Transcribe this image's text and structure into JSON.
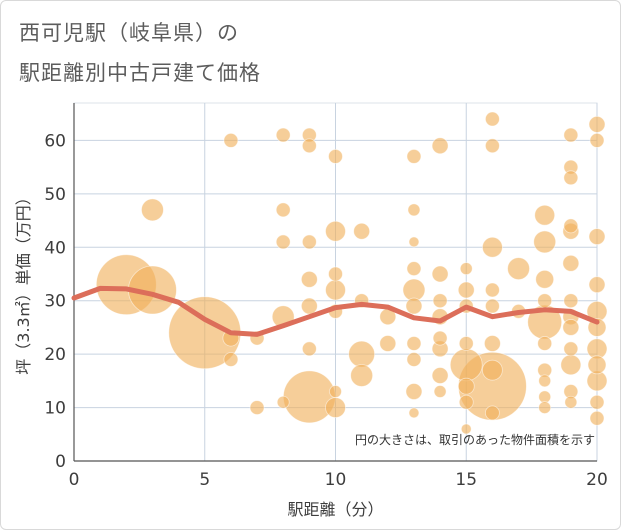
{
  "title_line1": "西可児駅（岐阜県）の",
  "title_line2": "駅距離別中古戸建て価格",
  "chart_data": {
    "type": "scatter",
    "xlabel": "駅距離（分）",
    "ylabel": "坪（3.3㎡）単価（万円）",
    "xlim": [
      0,
      20
    ],
    "ylim": [
      0,
      67
    ],
    "xticks": [
      0,
      5,
      10,
      15,
      20
    ],
    "yticks": [
      0,
      10,
      20,
      30,
      40,
      50,
      60
    ],
    "grid": true,
    "note": "円の大きさは、取引のあった物件面積を示す",
    "colors": {
      "bubble": "#f0b05a",
      "trend": "#dc6e5a"
    },
    "points": [
      {
        "x": 2,
        "y": 33,
        "s": 30
      },
      {
        "x": 3,
        "y": 32,
        "s": 24
      },
      {
        "x": 3,
        "y": 47,
        "s": 11
      },
      {
        "x": 5,
        "y": 24,
        "s": 36
      },
      {
        "x": 6,
        "y": 60,
        "s": 7
      },
      {
        "x": 6,
        "y": 23,
        "s": 8
      },
      {
        "x": 6,
        "y": 19,
        "s": 7
      },
      {
        "x": 7,
        "y": 23,
        "s": 7
      },
      {
        "x": 7,
        "y": 10,
        "s": 7
      },
      {
        "x": 8,
        "y": 61,
        "s": 7
      },
      {
        "x": 8,
        "y": 47,
        "s": 7
      },
      {
        "x": 8,
        "y": 41,
        "s": 7
      },
      {
        "x": 8,
        "y": 27,
        "s": 11
      },
      {
        "x": 8,
        "y": 11,
        "s": 6
      },
      {
        "x": 9,
        "y": 61,
        "s": 7
      },
      {
        "x": 9,
        "y": 59,
        "s": 7
      },
      {
        "x": 9,
        "y": 41,
        "s": 7
      },
      {
        "x": 9,
        "y": 34,
        "s": 8
      },
      {
        "x": 9,
        "y": 29,
        "s": 8
      },
      {
        "x": 9,
        "y": 21,
        "s": 7
      },
      {
        "x": 9,
        "y": 12,
        "s": 26
      },
      {
        "x": 10,
        "y": 57,
        "s": 7
      },
      {
        "x": 10,
        "y": 43,
        "s": 10
      },
      {
        "x": 10,
        "y": 35,
        "s": 7
      },
      {
        "x": 10,
        "y": 32,
        "s": 10
      },
      {
        "x": 10,
        "y": 28,
        "s": 7
      },
      {
        "x": 10,
        "y": 13,
        "s": 6
      },
      {
        "x": 10,
        "y": 10,
        "s": 10
      },
      {
        "x": 11,
        "y": 43,
        "s": 8
      },
      {
        "x": 11,
        "y": 30,
        "s": 7
      },
      {
        "x": 11,
        "y": 20,
        "s": 13
      },
      {
        "x": 11,
        "y": 16,
        "s": 11
      },
      {
        "x": 12,
        "y": 27,
        "s": 8
      },
      {
        "x": 12,
        "y": 22,
        "s": 8
      },
      {
        "x": 13,
        "y": 57,
        "s": 7
      },
      {
        "x": 13,
        "y": 47,
        "s": 6
      },
      {
        "x": 13,
        "y": 41,
        "s": 5
      },
      {
        "x": 13,
        "y": 36,
        "s": 7
      },
      {
        "x": 13,
        "y": 32,
        "s": 11
      },
      {
        "x": 13,
        "y": 29,
        "s": 8
      },
      {
        "x": 13,
        "y": 22,
        "s": 7
      },
      {
        "x": 13,
        "y": 19,
        "s": 7
      },
      {
        "x": 13,
        "y": 13,
        "s": 8
      },
      {
        "x": 13,
        "y": 9,
        "s": 5
      },
      {
        "x": 14,
        "y": 59,
        "s": 8
      },
      {
        "x": 14,
        "y": 35,
        "s": 8
      },
      {
        "x": 14,
        "y": 30,
        "s": 7
      },
      {
        "x": 14,
        "y": 27,
        "s": 8
      },
      {
        "x": 14,
        "y": 23,
        "s": 7
      },
      {
        "x": 14,
        "y": 21,
        "s": 8
      },
      {
        "x": 14,
        "y": 16,
        "s": 8
      },
      {
        "x": 14,
        "y": 13,
        "s": 6
      },
      {
        "x": 15,
        "y": 36,
        "s": 6
      },
      {
        "x": 15,
        "y": 32,
        "s": 8
      },
      {
        "x": 15,
        "y": 29,
        "s": 7
      },
      {
        "x": 15,
        "y": 22,
        "s": 7
      },
      {
        "x": 15,
        "y": 18,
        "s": 16
      },
      {
        "x": 15,
        "y": 14,
        "s": 8
      },
      {
        "x": 15,
        "y": 11,
        "s": 7
      },
      {
        "x": 15,
        "y": 6,
        "s": 5
      },
      {
        "x": 16,
        "y": 64,
        "s": 7
      },
      {
        "x": 16,
        "y": 59,
        "s": 7
      },
      {
        "x": 16,
        "y": 40,
        "s": 10
      },
      {
        "x": 16,
        "y": 32,
        "s": 7
      },
      {
        "x": 16,
        "y": 29,
        "s": 7
      },
      {
        "x": 16,
        "y": 22,
        "s": 8
      },
      {
        "x": 16,
        "y": 17,
        "s": 10
      },
      {
        "x": 16,
        "y": 14,
        "s": 34
      },
      {
        "x": 16,
        "y": 9,
        "s": 7
      },
      {
        "x": 17,
        "y": 36,
        "s": 11
      },
      {
        "x": 17,
        "y": 28,
        "s": 7
      },
      {
        "x": 18,
        "y": 46,
        "s": 10
      },
      {
        "x": 18,
        "y": 41,
        "s": 11
      },
      {
        "x": 18,
        "y": 34,
        "s": 9
      },
      {
        "x": 18,
        "y": 30,
        "s": 7
      },
      {
        "x": 18,
        "y": 26,
        "s": 17
      },
      {
        "x": 18,
        "y": 22,
        "s": 7
      },
      {
        "x": 18,
        "y": 17,
        "s": 7
      },
      {
        "x": 18,
        "y": 15,
        "s": 6
      },
      {
        "x": 18,
        "y": 12,
        "s": 6
      },
      {
        "x": 18,
        "y": 10,
        "s": 6
      },
      {
        "x": 19,
        "y": 61,
        "s": 7
      },
      {
        "x": 19,
        "y": 55,
        "s": 7
      },
      {
        "x": 19,
        "y": 53,
        "s": 7
      },
      {
        "x": 19,
        "y": 44,
        "s": 7
      },
      {
        "x": 19,
        "y": 43,
        "s": 8
      },
      {
        "x": 19,
        "y": 37,
        "s": 8
      },
      {
        "x": 19,
        "y": 30,
        "s": 7
      },
      {
        "x": 19,
        "y": 27,
        "s": 8
      },
      {
        "x": 19,
        "y": 25,
        "s": 8
      },
      {
        "x": 19,
        "y": 21,
        "s": 7
      },
      {
        "x": 19,
        "y": 18,
        "s": 10
      },
      {
        "x": 19,
        "y": 13,
        "s": 7
      },
      {
        "x": 19,
        "y": 11,
        "s": 6
      },
      {
        "x": 20,
        "y": 63,
        "s": 8
      },
      {
        "x": 20,
        "y": 60,
        "s": 7
      },
      {
        "x": 20,
        "y": 42,
        "s": 8
      },
      {
        "x": 20,
        "y": 33,
        "s": 8
      },
      {
        "x": 20,
        "y": 28,
        "s": 10
      },
      {
        "x": 20,
        "y": 25,
        "s": 9
      },
      {
        "x": 20,
        "y": 21,
        "s": 10
      },
      {
        "x": 20,
        "y": 18,
        "s": 9
      },
      {
        "x": 20,
        "y": 15,
        "s": 10
      },
      {
        "x": 20,
        "y": 11,
        "s": 7
      },
      {
        "x": 20,
        "y": 8,
        "s": 7
      }
    ],
    "trend": {
      "x": [
        0,
        1,
        2,
        3,
        4,
        5,
        6,
        7,
        8,
        9,
        10,
        11,
        12,
        13,
        14,
        15,
        16,
        17,
        18,
        19,
        20
      ],
      "y": [
        30.5,
        32.3,
        32.2,
        31.2,
        29.7,
        26.5,
        24.0,
        23.7,
        25.3,
        27.0,
        28.7,
        29.3,
        28.8,
        26.8,
        26.2,
        28.8,
        27.0,
        27.8,
        28.3,
        28.0,
        26.0
      ]
    }
  }
}
